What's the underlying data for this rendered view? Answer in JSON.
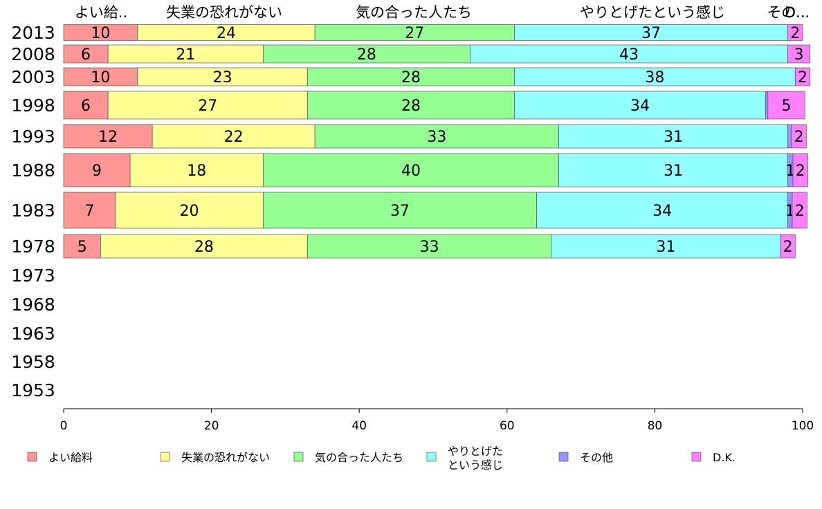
{
  "chart_data": {
    "type": "bar",
    "orientation": "horizontal",
    "stacked": true,
    "title": "",
    "xlabel": "",
    "ylabel": "",
    "xlim": [
      0,
      100
    ],
    "x_ticks": [
      0,
      20,
      40,
      60,
      80,
      100
    ],
    "legend_position": "bottom",
    "top_labels": [
      "よい給..",
      "失業の恐れがない",
      "気の合った人たち",
      "やりとげたという感じ",
      "その..",
      "D..."
    ],
    "categories": [
      "2013",
      "2008",
      "2003",
      "1998",
      "1993",
      "1988",
      "1983",
      "1978",
      "1973",
      "1968",
      "1963",
      "1958",
      "1953"
    ],
    "series": [
      {
        "name": "よい給料",
        "color": "#ff9595",
        "values": [
          10,
          6,
          10,
          6,
          12,
          9,
          7,
          5,
          null,
          null,
          null,
          null,
          null
        ],
        "labels": [
          "10",
          "6",
          "10",
          "6",
          "12",
          "9",
          "7",
          "5",
          "",
          "",
          "",
          "",
          ""
        ]
      },
      {
        "name": "失業の恐れがない",
        "color": "#ffff95",
        "values": [
          24,
          21,
          23,
          27,
          22,
          18,
          20,
          28,
          null,
          null,
          null,
          null,
          null
        ],
        "labels": [
          "24",
          "21",
          "23",
          "27",
          "22",
          "18",
          "20",
          "28",
          "",
          "",
          "",
          "",
          ""
        ]
      },
      {
        "name": "気の合った人たち",
        "color": "#95ff95",
        "values": [
          27,
          28,
          28,
          28,
          33,
          40,
          37,
          33,
          null,
          null,
          null,
          null,
          null
        ],
        "labels": [
          "27",
          "28",
          "28",
          "28",
          "33",
          "40",
          "37",
          "33",
          "",
          "",
          "",
          "",
          ""
        ]
      },
      {
        "name": "やりとげたという感じ",
        "color": "#95ffff",
        "values": [
          37,
          43,
          38,
          34,
          31,
          31,
          34,
          31,
          null,
          null,
          null,
          null,
          null
        ],
        "labels": [
          "37",
          "43",
          "38",
          "34",
          "31",
          "31",
          "34",
          "31",
          "",
          "",
          "",
          "",
          ""
        ]
      },
      {
        "name": "その他",
        "color": "#9595ff",
        "values": [
          0,
          0,
          0,
          0.3,
          0.5,
          0.7,
          0.6,
          0,
          null,
          null,
          null,
          null,
          null
        ],
        "labels": [
          "",
          "",
          "",
          "",
          "",
          "1",
          "1",
          "",
          "",
          "",
          "",
          "",
          ""
        ]
      },
      {
        "name": "D.K.",
        "color": "#ff80ff",
        "values": [
          2,
          3,
          2,
          5,
          2,
          2,
          2,
          2,
          null,
          null,
          null,
          null,
          null
        ],
        "labels": [
          "2",
          "3",
          "2",
          "5",
          "2",
          "2",
          "2",
          "2",
          "",
          "",
          "",
          "",
          ""
        ]
      }
    ],
    "legend_lines": [
      [
        "よい給料"
      ],
      [
        "失業の恐れがない"
      ],
      [
        "気の合った人たち"
      ],
      [
        "やりとげた",
        "という感じ"
      ],
      [
        "その他"
      ],
      [
        "D.K."
      ]
    ]
  }
}
